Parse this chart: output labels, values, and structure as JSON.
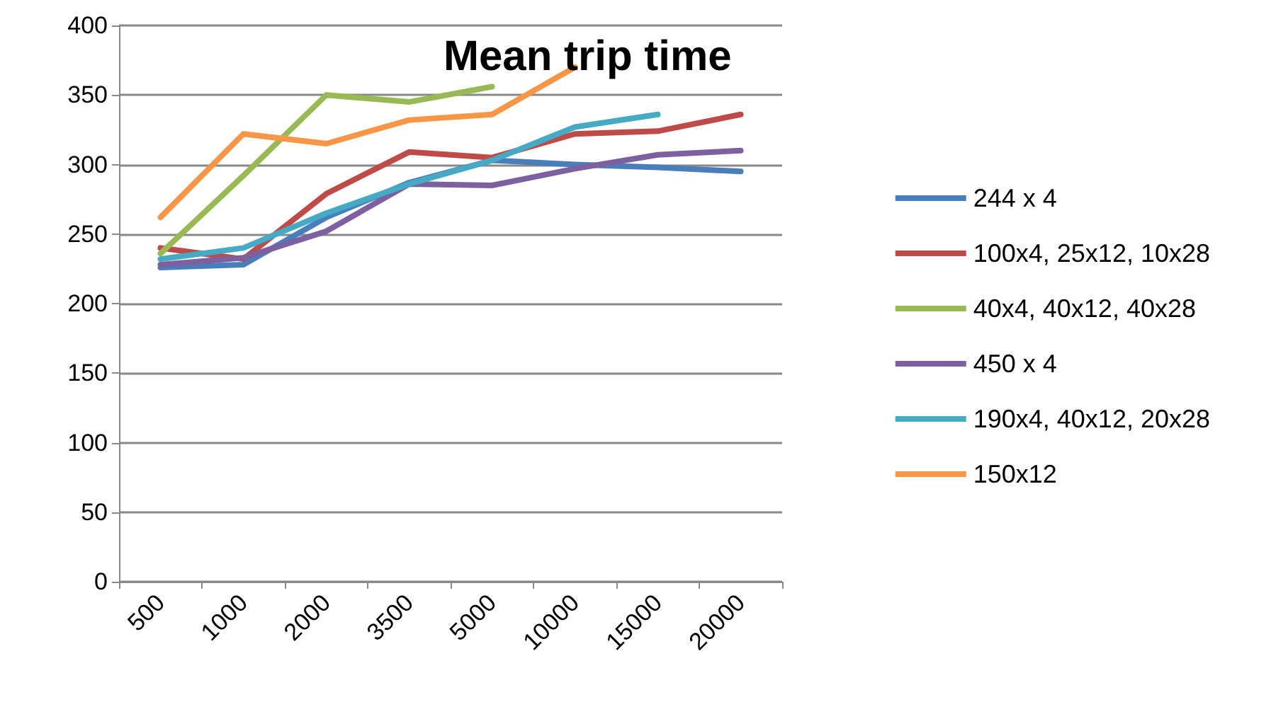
{
  "chart_data": {
    "type": "line",
    "title": "Mean trip time",
    "categories": [
      "500",
      "1000",
      "2000",
      "3500",
      "5000",
      "10000",
      "15000",
      "20000"
    ],
    "series": [
      {
        "name": "244 x 4",
        "color": "#4a7ebb",
        "values": [
          226,
          228,
          262,
          287,
          303,
          300,
          298,
          295
        ]
      },
      {
        "name": "100x4, 25x12, 10x28",
        "color": "#be4b48",
        "values": [
          240,
          232,
          279,
          309,
          305,
          322,
          324,
          336
        ]
      },
      {
        "name": "40x4, 40x12, 40x28",
        "color": "#98b954",
        "values": [
          236,
          292,
          350,
          345,
          356,
          null,
          null,
          null
        ]
      },
      {
        "name": "450 x 4",
        "color": "#7d60a0",
        "values": [
          228,
          233,
          252,
          286,
          285,
          297,
          307,
          310
        ]
      },
      {
        "name": "190x4, 40x12, 20x28",
        "color": "#46aac5",
        "values": [
          232,
          240,
          265,
          286,
          303,
          327,
          336,
          null
        ]
      },
      {
        "name": "150x12",
        "color": "#f79646",
        "values": [
          262,
          322,
          315,
          332,
          336,
          370,
          null,
          null
        ]
      }
    ],
    "ylim": [
      0,
      400
    ],
    "yticks": [
      0,
      50,
      100,
      150,
      200,
      250,
      300,
      350,
      400
    ],
    "grid": "y",
    "legend": "right",
    "marker": "none",
    "line_style": "solid"
  }
}
